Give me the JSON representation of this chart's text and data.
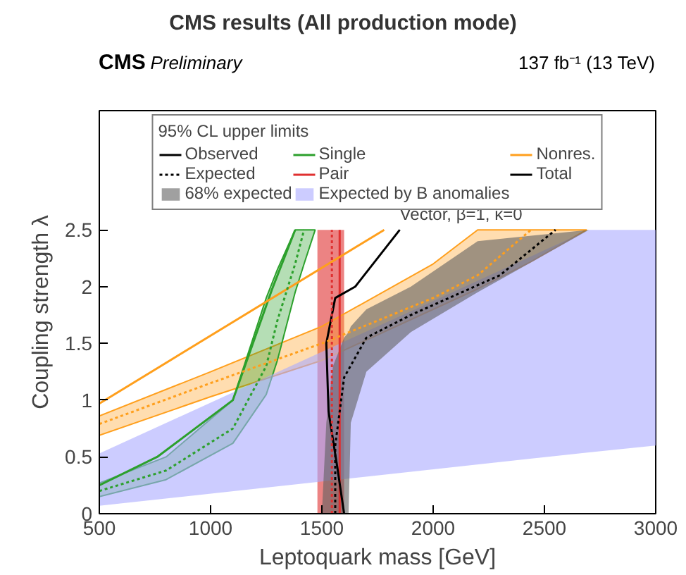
{
  "chart_data": {
    "type": "line",
    "title": "CMS results (All production mode)",
    "xlabel": "Leptoquark mass [GeV]",
    "ylabel": "Coupling strength λ",
    "legend_title": "95% CL upper limits",
    "legend": "top",
    "xlim": [
      500,
      3000
    ],
    "ylim": [
      0,
      3.55
    ],
    "xticks": [
      500,
      1000,
      1500,
      2000,
      2500,
      3000
    ],
    "yticks": [
      0,
      0.5,
      1,
      1.5,
      2,
      2.5
    ],
    "annotations": [
      "Observed",
      "Expected",
      "Vector, β=1, κ=0",
      "CMS",
      "Preliminary",
      "137 fb⁻¹ (13 TeV)"
    ],
    "series": [
      {
        "name": "68% expected",
        "color": "#606060",
        "x": [
          1500,
          1520,
          1550,
          1600,
          1620,
          1630,
          1700,
          1900,
          2200,
          2700
        ],
        "values": [
          null,
          null,
          null,
          null,
          null,
          null,
          null,
          null,
          null,
          null
        ],
        "upper": [
          0,
          0.8,
          1.3,
          1.55,
          1.6,
          1.65,
          1.8,
          2.0,
          2.4,
          2.5
        ],
        "lower": [
          0,
          0,
          0,
          0,
          0,
          0.8,
          1.25,
          1.6,
          1.95,
          2.5
        ]
      },
      {
        "name": "Single",
        "color": "#2ca02c",
        "line_style": "solid",
        "x": [
          500,
          760,
          1100,
          1275,
          1380
        ],
        "values": [
          0.25,
          0.5,
          1.0,
          1.97,
          2.5
        ]
      },
      {
        "name": "Pair",
        "color": "#e03030",
        "line_style": "solid",
        "x": [
          1580,
          1580
        ],
        "values": [
          0,
          2.5
        ]
      },
      {
        "name": "Expected by B anomalies",
        "color": "#aaaaff",
        "x": [
          500,
          2700,
          3000
        ],
        "values": [
          null,
          null,
          null
        ],
        "upper": [
          0.53,
          2.5,
          2.5
        ],
        "lower": [
          0.07,
          0.54,
          0.6
        ]
      },
      {
        "name": "Nonres.",
        "color": "#ff9f1c",
        "line_style": "solid",
        "x": [
          500,
          1780
        ],
        "values": [
          0.97,
          2.5
        ]
      },
      {
        "name": "Total",
        "color": "#000000",
        "line_style": "solid",
        "x": [
          1600,
          1570,
          1530,
          1520,
          1560,
          1650,
          1850
        ],
        "values": [
          0,
          0.4,
          0.9,
          1.5,
          1.9,
          2.0,
          2.5
        ]
      },
      {
        "color": "#2ca02c",
        "line_style": "dotted",
        "x": [
          500,
          800,
          1100,
          1250,
          1300,
          1380,
          1420,
          1470
        ],
        "values": [
          0.2,
          0.38,
          0.75,
          1.3,
          1.7,
          2.2,
          2.5,
          null
        ],
        "upper": [
          0.27,
          0.5,
          1.0,
          1.9,
          2.15,
          2.5,
          2.5,
          2.5
        ],
        "lower": [
          0.15,
          0.3,
          0.62,
          1.05,
          1.35,
          1.95,
          2.2,
          2.5
        ]
      },
      {
        "color": "#ff9f1c",
        "line_style": "dotted",
        "x": [
          500,
          1000,
          1500,
          2000,
          2200,
          2440,
          2690
        ],
        "values": [
          0.79,
          1.15,
          1.5,
          1.9,
          2.1,
          2.5,
          null
        ],
        "upper": [
          0.86,
          1.25,
          1.65,
          2.2,
          2.5,
          2.5,
          2.5
        ],
        "lower": [
          0.69,
          1.03,
          1.35,
          1.8,
          1.98,
          2.22,
          2.5
        ]
      },
      {
        "color": "#e03030",
        "x": [
          1480,
          1600
        ],
        "values": [
          null,
          null
        ],
        "upper": [
          2.5,
          2.5
        ],
        "lower": [
          0,
          0
        ]
      },
      {
        "color": "#e03030",
        "line_style": "dotted",
        "x": [
          1545,
          1545
        ],
        "values": [
          0,
          2.5
        ]
      },
      {
        "color": "#000000",
        "line_style": "dotted",
        "x": [
          1560,
          1560,
          1600,
          1700,
          1900,
          2300,
          2550
        ],
        "values": [
          0,
          0.6,
          1.2,
          1.55,
          1.75,
          2.1,
          2.5
        ]
      }
    ]
  }
}
